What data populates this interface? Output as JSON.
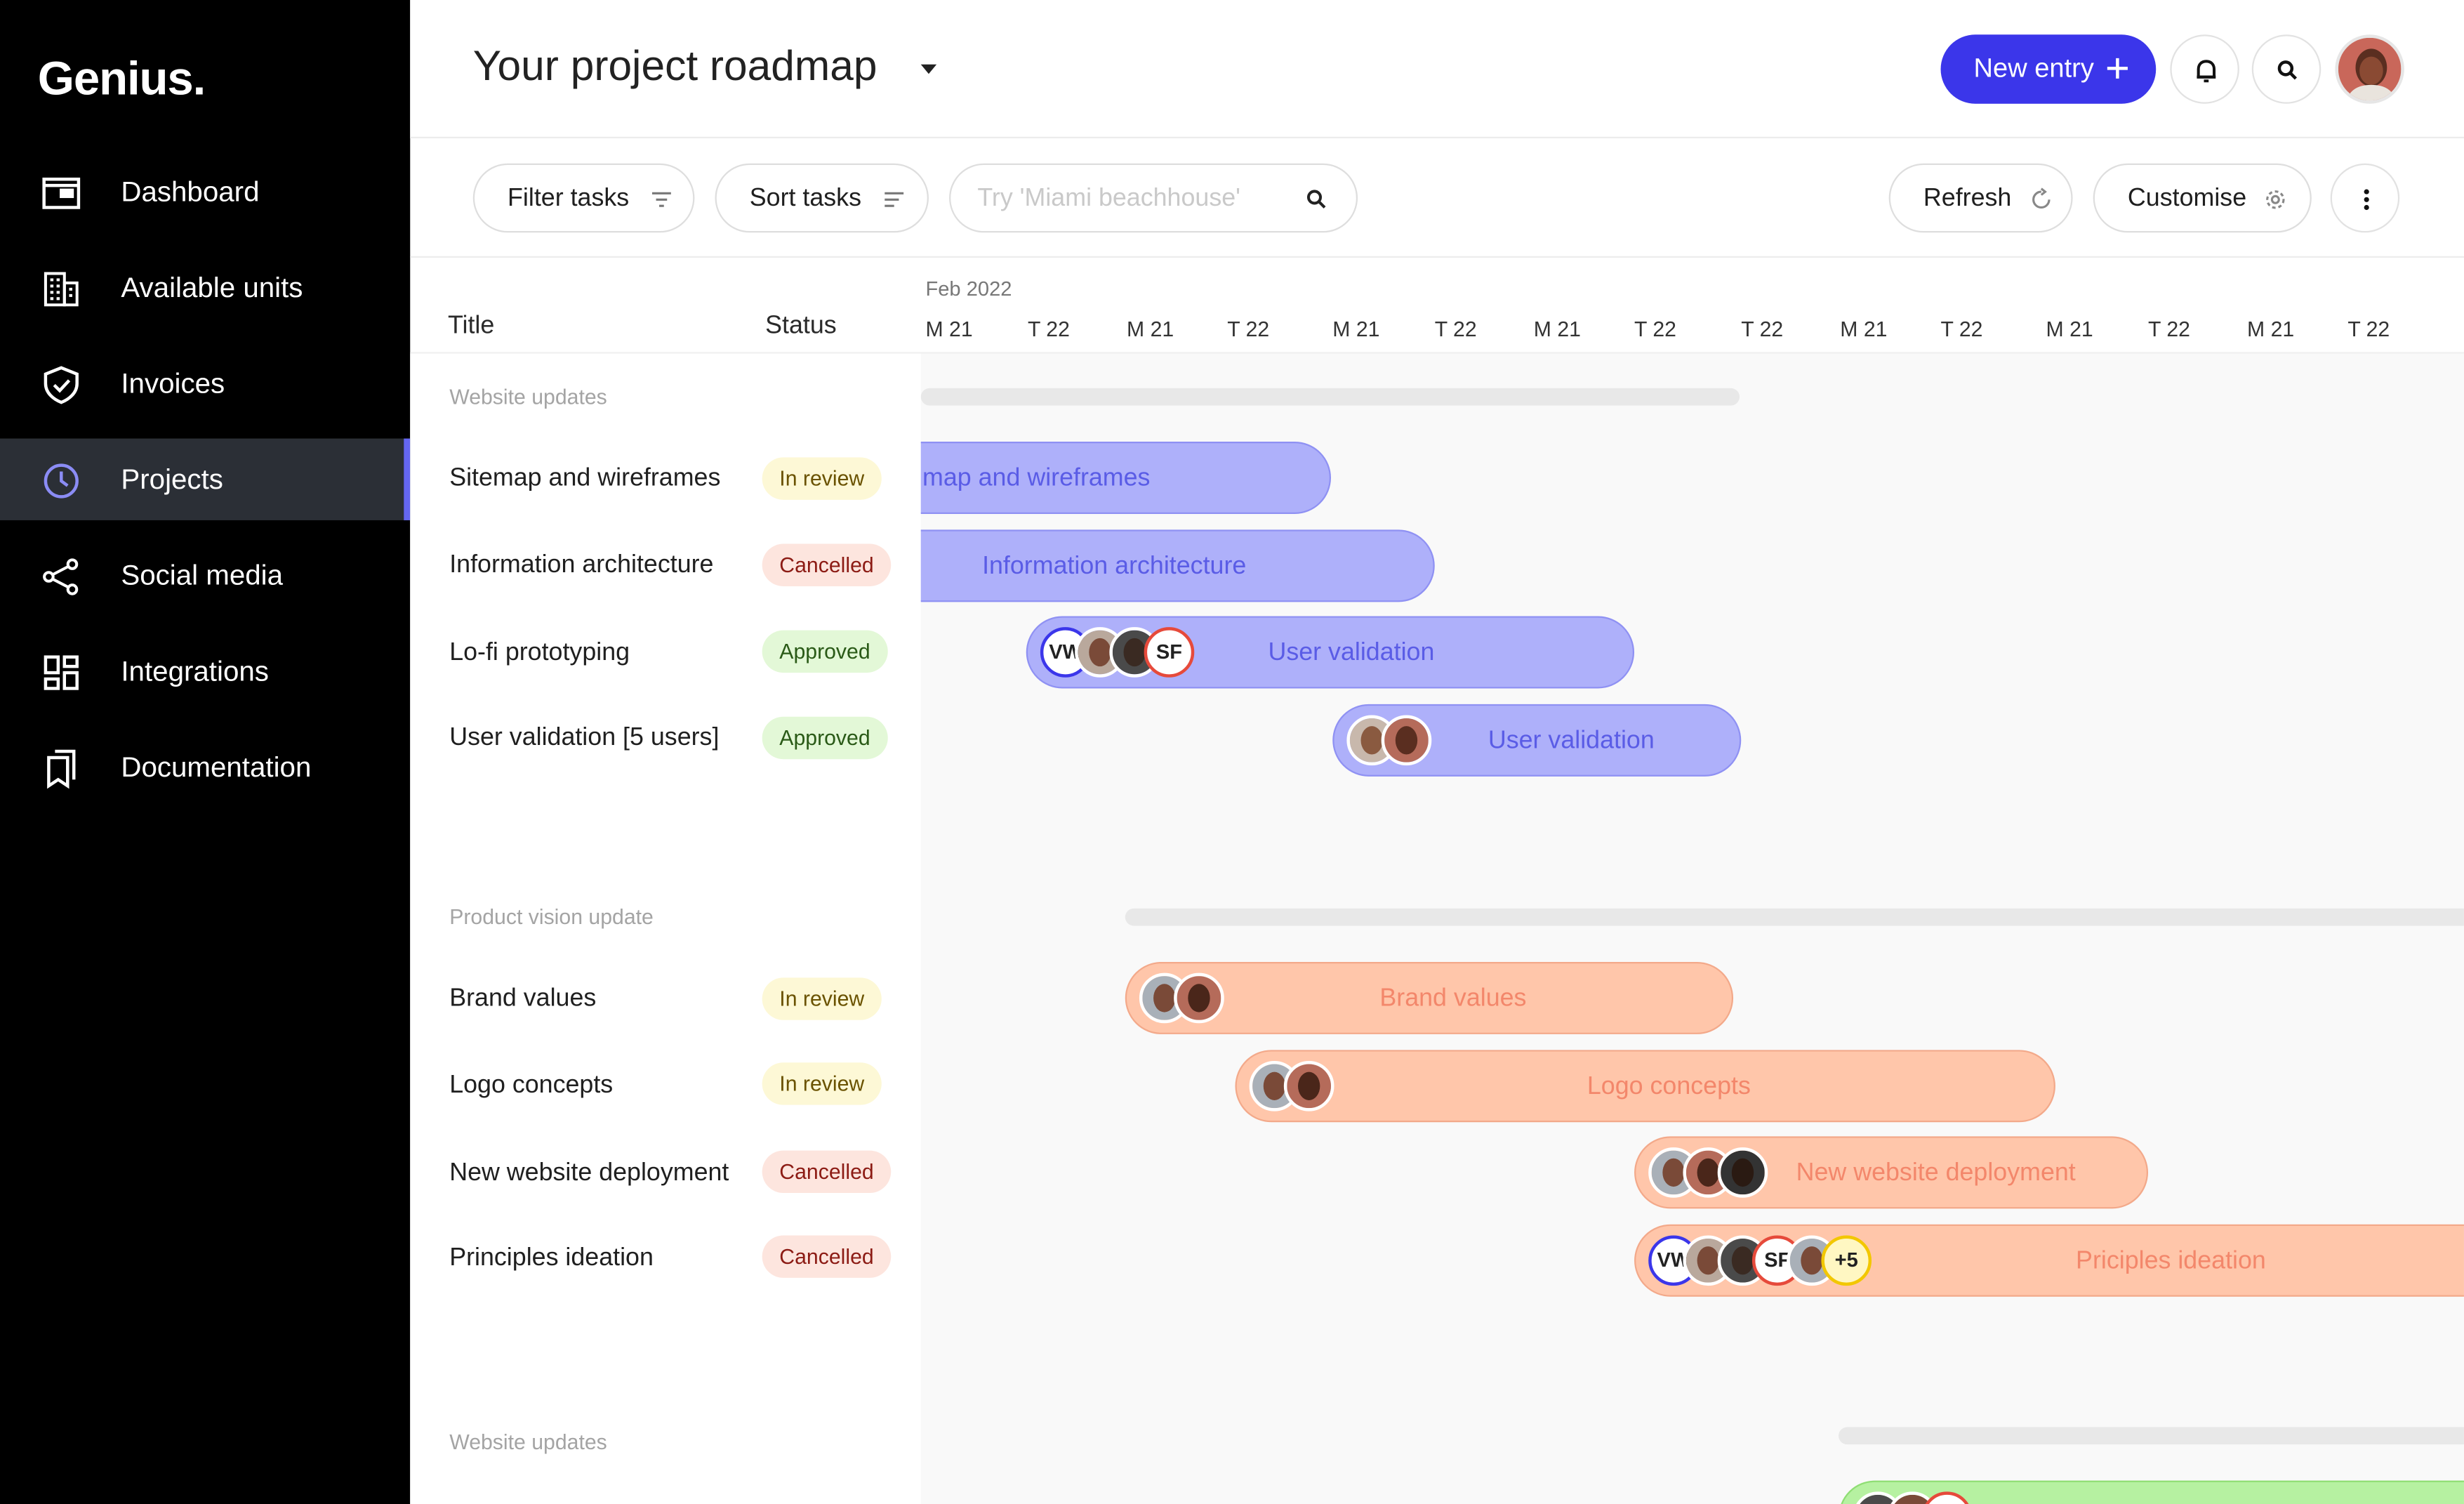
{
  "app": {
    "logo": "Genius."
  },
  "sidebar": {
    "items": [
      {
        "label": "Dashboard",
        "icon": "window-icon"
      },
      {
        "label": "Available units",
        "icon": "building-icon"
      },
      {
        "label": "Invoices",
        "icon": "shield-check-icon"
      },
      {
        "label": "Projects",
        "icon": "clock-icon",
        "active": true
      },
      {
        "label": "Social media",
        "icon": "share-icon"
      },
      {
        "label": "Integrations",
        "icon": "grid-icon"
      },
      {
        "label": "Documentation",
        "icon": "bookmarks-icon"
      }
    ]
  },
  "header": {
    "title": "Your project roadmap",
    "new_entry_label": "New entry",
    "accent": "#3b36ea"
  },
  "toolbar": {
    "filter_label": "Filter tasks",
    "sort_label": "Sort tasks",
    "search_placeholder": "Try 'Miami beachhouse'",
    "refresh_label": "Refresh",
    "customise_label": "Customise"
  },
  "table": {
    "title_header": "Title",
    "status_header": "Status",
    "month": "Feb 2022",
    "days": [
      "M 21",
      "T 22",
      "M 21",
      "T 22",
      "M 21",
      "T 22",
      "M 21",
      "T 22",
      "T 22",
      "M 21",
      "T 22",
      "M 21",
      "T 22",
      "M 21",
      "T 22"
    ]
  },
  "groups": [
    {
      "title": "Website updates",
      "tasks": [
        {
          "title": "Sitemap and wireframes",
          "status": "In review",
          "bar_label": "map and wireframes"
        },
        {
          "title": "Information architecture",
          "status": "Cancelled",
          "bar_label": "Information architecture"
        },
        {
          "title": "Lo-fi prototyping",
          "status": "Approved",
          "bar_label": "User validation",
          "initials": [
            "VW",
            "SF"
          ]
        },
        {
          "title": "User validation [5 users]",
          "status": "Approved",
          "bar_label": "User validation"
        }
      ]
    },
    {
      "title": "Product vision update",
      "tasks": [
        {
          "title": "Brand values",
          "status": "In review",
          "bar_label": "Brand values"
        },
        {
          "title": "Logo concepts",
          "status": "In review",
          "bar_label": "Logo concepts"
        },
        {
          "title": "New website deployment",
          "status": "Cancelled",
          "bar_label": "New website deployment"
        },
        {
          "title": "Principles ideation",
          "status": "Cancelled",
          "bar_label": "Priciples ideation",
          "initials": [
            "VW",
            "SF"
          ],
          "extra": "+5"
        }
      ]
    },
    {
      "title": "Website updates",
      "tasks": []
    }
  ],
  "status_colors": {
    "In review": "#fdf8d6",
    "Cancelled": "#fde5de",
    "Approved": "#e3f8d7"
  }
}
